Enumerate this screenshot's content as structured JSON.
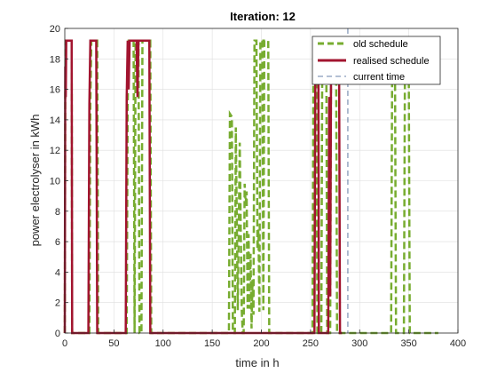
{
  "chart_data": {
    "type": "line",
    "title": "Iteration: 12",
    "xlabel": "time in h",
    "ylabel": "power electrolyser in kWh",
    "xlim": [
      0,
      400
    ],
    "ylim": [
      0,
      20
    ],
    "xticks": [
      0,
      50,
      100,
      150,
      200,
      250,
      300,
      350,
      400
    ],
    "yticks": [
      0,
      2,
      4,
      6,
      8,
      10,
      12,
      14,
      16,
      18,
      20
    ],
    "grid": true,
    "legend_position": "top-right",
    "current_time": 288,
    "series": [
      {
        "name": "old schedule",
        "style": "dashed",
        "color": "#77ac30",
        "points": [
          [
            0,
            0
          ],
          [
            0.5,
            15.5
          ],
          [
            1,
            19.2
          ],
          [
            7,
            19.2
          ],
          [
            7.5,
            0
          ],
          [
            25,
            0
          ],
          [
            26,
            15
          ],
          [
            27,
            19.2
          ],
          [
            33,
            19.2
          ],
          [
            34,
            0
          ],
          [
            63,
            0
          ],
          [
            64,
            15
          ],
          [
            65,
            19.2
          ],
          [
            70,
            19.2
          ],
          [
            71,
            0
          ],
          [
            72,
            19.2
          ],
          [
            75,
            19.2
          ],
          [
            76,
            0
          ],
          [
            78,
            0
          ],
          [
            79,
            19.2
          ],
          [
            87,
            19.2
          ],
          [
            88,
            0
          ],
          [
            167,
            0
          ],
          [
            168,
            14.4
          ],
          [
            170,
            14.2
          ],
          [
            171,
            0
          ],
          [
            173,
            0
          ],
          [
            174,
            13.5
          ],
          [
            176,
            1.5
          ],
          [
            178,
            12.5
          ],
          [
            180,
            1.5
          ],
          [
            181,
            0
          ],
          [
            182,
            0
          ],
          [
            183,
            9.8
          ],
          [
            184,
            8.5
          ],
          [
            185,
            9.3
          ],
          [
            186,
            1.6
          ],
          [
            187,
            6.5
          ],
          [
            188,
            1.6
          ],
          [
            189,
            5.2
          ],
          [
            190,
            0.3
          ],
          [
            191,
            3.5
          ],
          [
            192,
            1.2
          ],
          [
            193,
            19.2
          ],
          [
            195,
            19.2
          ],
          [
            196,
            5.5
          ],
          [
            197,
            6.8
          ],
          [
            198,
            1.4
          ],
          [
            199,
            19.2
          ],
          [
            201,
            19.2
          ],
          [
            202,
            1.5
          ],
          [
            203,
            19.2
          ],
          [
            207,
            19.2
          ],
          [
            208,
            0
          ],
          [
            252,
            0
          ],
          [
            253,
            19.2
          ],
          [
            256,
            19.2
          ],
          [
            257,
            0
          ],
          [
            261,
            0
          ],
          [
            262,
            19.2
          ],
          [
            266,
            19.2
          ],
          [
            267,
            0
          ],
          [
            270,
            0
          ],
          [
            271,
            19.2
          ],
          [
            276,
            19.2
          ],
          [
            277,
            0
          ],
          [
            332,
            0
          ],
          [
            333,
            16.5
          ],
          [
            336,
            16.5
          ],
          [
            337,
            0
          ],
          [
            345,
            0
          ],
          [
            346,
            16.5
          ],
          [
            350,
            16.5
          ],
          [
            351,
            0
          ],
          [
            380,
            0
          ]
        ]
      },
      {
        "name": "realised schedule",
        "style": "solid",
        "color": "#a2142f",
        "points": [
          [
            0,
            0
          ],
          [
            0.5,
            17.5
          ],
          [
            1,
            15.5
          ],
          [
            1.5,
            19.2
          ],
          [
            7,
            19.2
          ],
          [
            7.5,
            0
          ],
          [
            24,
            0
          ],
          [
            25,
            15
          ],
          [
            26,
            19.2
          ],
          [
            32,
            19.2
          ],
          [
            33,
            0
          ],
          [
            62,
            0
          ],
          [
            63,
            15.5
          ],
          [
            64,
            19.2
          ],
          [
            65,
            16
          ],
          [
            66,
            19.2
          ],
          [
            73,
            19.2
          ],
          [
            74,
            15.5
          ],
          [
            75,
            19.2
          ],
          [
            86,
            19.2
          ],
          [
            87,
            0
          ],
          [
            254,
            0
          ],
          [
            255,
            19.2
          ],
          [
            258,
            19.2
          ],
          [
            258.5,
            0
          ],
          [
            268,
            0
          ],
          [
            269,
            15.5
          ],
          [
            270,
            2.4
          ],
          [
            271,
            19.2
          ],
          [
            274,
            19.2
          ],
          [
            275,
            16.5
          ],
          [
            276,
            19.2
          ],
          [
            279,
            19.2
          ],
          [
            280,
            0
          ],
          [
            282,
            0
          ]
        ]
      }
    ]
  }
}
